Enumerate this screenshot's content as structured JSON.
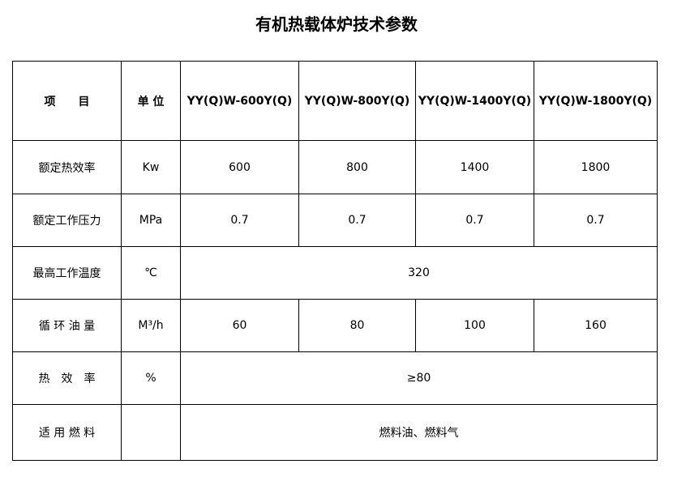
{
  "title": "有机热载体炉技术参数",
  "headers": [
    "项　　目",
    "单 位",
    "YY(Q)W-600Y(Q)",
    "YY(Q)W-800Y(Q)",
    "YY(Q)W-1400Y(Q)",
    "YY(Q)W-1800Y(Q)"
  ],
  "rows": [
    {
      "item": "额定热效率",
      "unit": "Kw",
      "values": [
        "600",
        "800",
        "1400",
        "1800"
      ]
    },
    {
      "item": "额定工作压力",
      "unit": "MPa",
      "values": [
        "0.7",
        "0.7",
        "0.7",
        "0.7"
      ]
    },
    {
      "item": "最高工作温度",
      "unit": "℃",
      "merged": "320"
    },
    {
      "item": "循 环 油 量",
      "unit": "M³/h",
      "values": [
        "60",
        "80",
        "100",
        "160"
      ]
    },
    {
      "item": "热　效　率",
      "unit": "%",
      "merged": "≥80"
    },
    {
      "item": "适 用 燃 料",
      "unit": "",
      "merged": "燃料油、燃料气"
    }
  ]
}
